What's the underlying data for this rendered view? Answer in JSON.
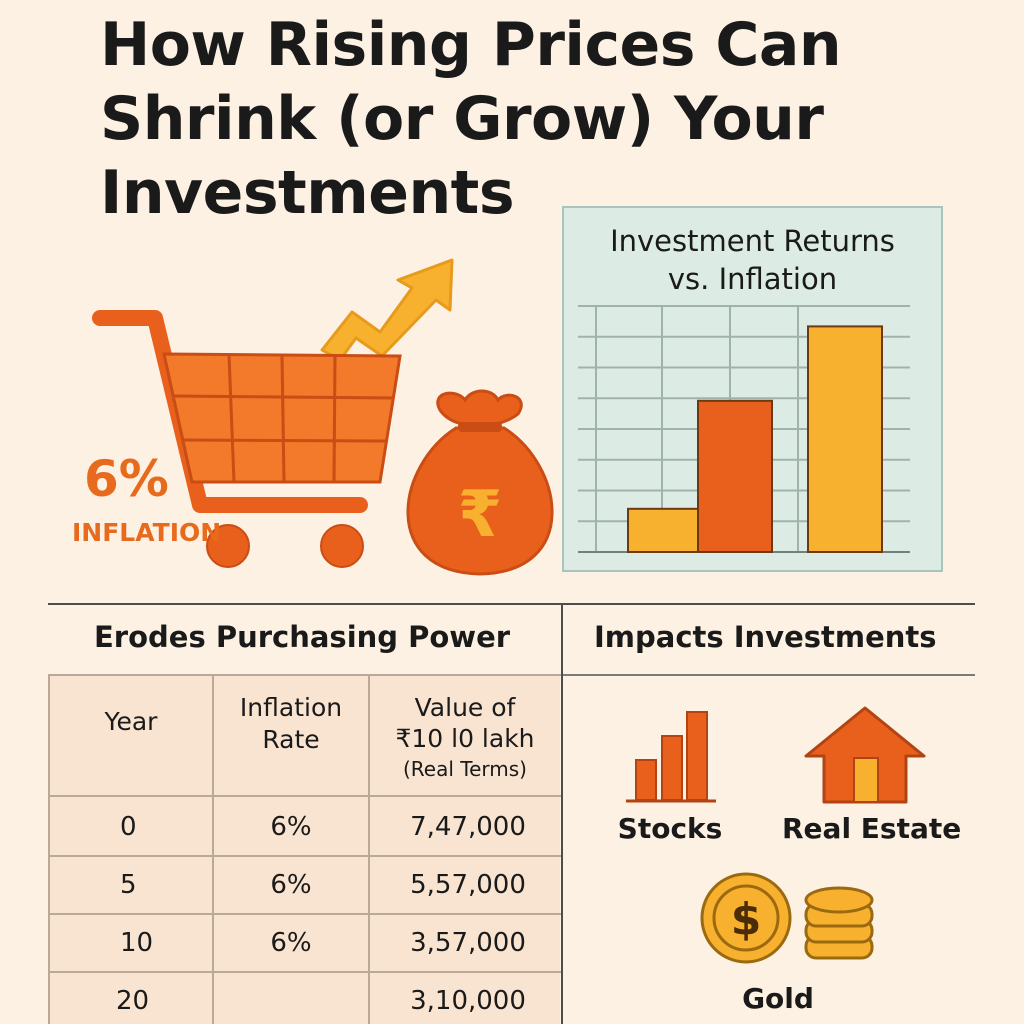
{
  "title_lines": [
    "How Rising Prices Can",
    "Shrink (or Grow) Your",
    "Investments"
  ],
  "inflation": {
    "percent": "6%",
    "label": "INFLATION"
  },
  "currency_symbol": "₹",
  "coin_symbol": "$",
  "chart_data": {
    "type": "bar",
    "title_lines": [
      "Investment Returns",
      "vs. Inflation"
    ],
    "categories": [
      "",
      "",
      ""
    ],
    "values": [
      1.8,
      6.3,
      9.4
    ],
    "ylim": [
      0,
      10
    ],
    "xlabel": "",
    "ylabel": "",
    "grid": true,
    "legend": "none",
    "bar_colors": [
      "#f7b12e",
      "#e8601c",
      "#f7b12e"
    ]
  },
  "table": {
    "heading": "Erodes Purchasing Power",
    "columns": [
      [
        "Year"
      ],
      [
        "Inflation",
        "Rate"
      ],
      [
        "Value of",
        "₹10 l0 lakh",
        "(Real Terms)"
      ]
    ],
    "rows": [
      [
        "0",
        "6%",
        "7,47,000"
      ],
      [
        "5",
        "6%",
        "5,57,000"
      ],
      [
        "10",
        "6%",
        "3,57,000"
      ],
      [
        "20",
        "",
        "3,10,000"
      ]
    ]
  },
  "impacts": {
    "heading": "Impacts Investments",
    "items": [
      {
        "label": "Stocks",
        "icon": "stocks-bar-icon"
      },
      {
        "label": "Real Estate",
        "icon": "house-icon"
      },
      {
        "label": "Gold",
        "icon": "gold-coins-icon"
      }
    ]
  },
  "colors": {
    "background": "#fcf1e3",
    "orange": "#e8601c",
    "orange_light": "#f27a2a",
    "yellow": "#f7b12e",
    "chart_panel": "#dcece5",
    "table_bg": "#f8e4d0",
    "text": "#1a1a1a"
  }
}
